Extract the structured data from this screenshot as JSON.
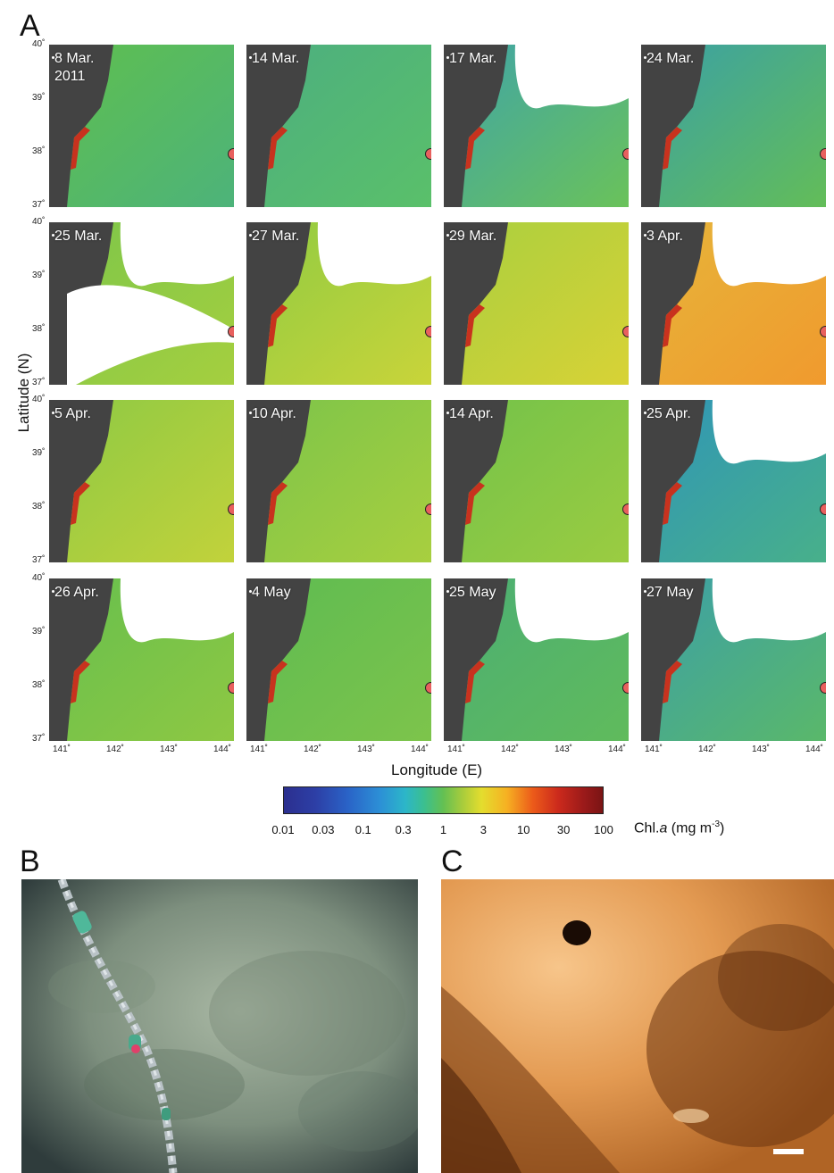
{
  "figure": {
    "panel_a": "A",
    "panel_b": "B",
    "panel_c": "C",
    "ylabel": "Latitude (N)",
    "xlabel": "Longitude (E)",
    "lat_ticks": [
      "40˚",
      "39˚",
      "38˚",
      "37˚"
    ],
    "lon_ticks": [
      "141˚",
      "142˚",
      "143˚",
      "144˚"
    ],
    "maps": [
      {
        "label": "8 Mar.\n2011"
      },
      {
        "label": "14 Mar."
      },
      {
        "label": "17 Mar."
      },
      {
        "label": "24 Mar."
      },
      {
        "label": "25 Mar."
      },
      {
        "label": "27 Mar."
      },
      {
        "label": "29 Mar."
      },
      {
        "label": "3 Apr."
      },
      {
        "label": "5 Apr."
      },
      {
        "label": "10 Apr."
      },
      {
        "label": "14 Apr."
      },
      {
        "label": "25 Apr."
      },
      {
        "label": "26 Apr."
      },
      {
        "label": "4 May"
      },
      {
        "label": "25 May"
      },
      {
        "label": "27 May"
      }
    ],
    "colorbar": {
      "ticks": [
        "0.01",
        "0.03",
        "0.1",
        "0.3",
        "1",
        "3",
        "10",
        "30",
        "100"
      ],
      "unit_prefix": "Chl.",
      "unit_italic": "a",
      "unit_suffix": " (mg m",
      "unit_exp": "-3",
      "unit_close": ")"
    }
  }
}
